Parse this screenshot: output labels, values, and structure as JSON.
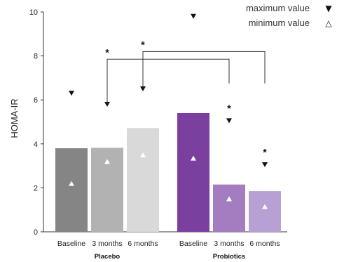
{
  "chart_data": {
    "type": "bar",
    "xlabel": "",
    "ylabel": "HOMA-IR",
    "ylim": [
      0,
      10
    ],
    "yticks": [
      0,
      2,
      4,
      6,
      8,
      10
    ],
    "grid": false,
    "legend_position": "top-right",
    "legend": [
      {
        "label": "maximum value",
        "marker": "▼",
        "marker_name": "filled-down-triangle"
      },
      {
        "label": "minimum value",
        "marker": "△",
        "marker_name": "open-up-triangle"
      }
    ],
    "groups": [
      {
        "name": "Placebo",
        "categories": [
          "Baseline",
          "3 months",
          "6 months"
        ],
        "values": [
          3.8,
          3.82,
          4.72
        ],
        "max_values": [
          6.3,
          5.8,
          6.5
        ],
        "min_values": [
          2.2,
          3.2,
          3.5
        ],
        "colors": [
          "#858585",
          "#b2b2b2",
          "#d9d9d9"
        ],
        "significant": [
          false,
          false,
          false
        ]
      },
      {
        "name": "Probiotics",
        "categories": [
          "Baseline",
          "3 months",
          "6 months"
        ],
        "values": [
          5.4,
          2.15,
          1.85
        ],
        "max_values": [
          9.8,
          5.05,
          3.05
        ],
        "min_values": [
          3.35,
          1.5,
          1.15
        ],
        "colors": [
          "#7b3fa0",
          "#a47dc0",
          "#b7a0d3"
        ],
        "significant": [
          false,
          true,
          true
        ]
      }
    ],
    "significance_marker": "*",
    "comparisons": [
      {
        "from": "Placebo 3 months",
        "to": "Probiotics 3 months",
        "label": "*"
      },
      {
        "from": "Placebo 6 months",
        "to": "Probiotics 6 months",
        "label": "*"
      }
    ],
    "colors": {
      "axis": "#333333",
      "bracket": "#333333",
      "marker": "#111111"
    }
  }
}
